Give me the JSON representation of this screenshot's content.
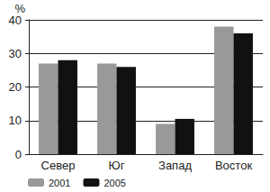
{
  "chart_data": {
    "type": "bar",
    "y_label": "%",
    "categories": [
      "Север",
      "Юг",
      "Запад",
      "Восток"
    ],
    "series": [
      {
        "name": "2001",
        "color": "#999999",
        "values": [
          27,
          27,
          9,
          38
        ]
      },
      {
        "name": "2005",
        "color": "#111111",
        "values": [
          28,
          26,
          10.5,
          36
        ]
      }
    ],
    "ylim": [
      0,
      40
    ],
    "yticks": [
      0,
      10,
      20,
      30,
      40
    ],
    "grid": true,
    "legend": "bottom"
  }
}
